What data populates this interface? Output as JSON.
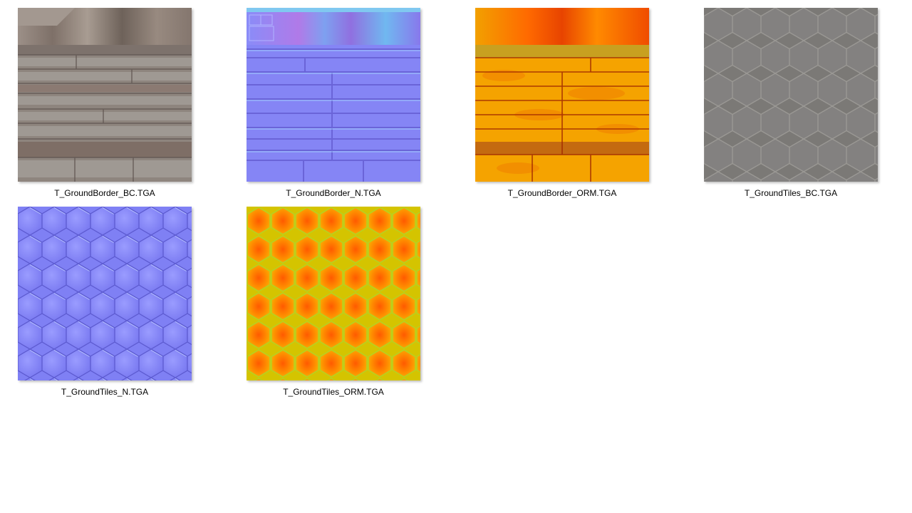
{
  "files": [
    {
      "name": "T_GroundBorder_BC.TGA",
      "thumbnail_icon": "ground-border-basecolor-texture"
    },
    {
      "name": "T_GroundBorder_N.TGA",
      "thumbnail_icon": "ground-border-normal-texture"
    },
    {
      "name": "T_GroundBorder_ORM.TGA",
      "thumbnail_icon": "ground-border-orm-texture"
    },
    {
      "name": "T_GroundTiles_BC.TGA",
      "thumbnail_icon": "ground-tiles-basecolor-texture"
    },
    {
      "name": "T_GroundTiles_N.TGA",
      "thumbnail_icon": "ground-tiles-normal-texture"
    },
    {
      "name": "T_GroundTiles_ORM.TGA",
      "thumbnail_icon": "ground-tiles-orm-texture"
    }
  ],
  "colors": {
    "background": "#ffffff",
    "stone": "#8a8680",
    "normal_blue": "#8080f8",
    "orm_orange": "#f5a200",
    "tiles_gray": "#7a7874"
  }
}
